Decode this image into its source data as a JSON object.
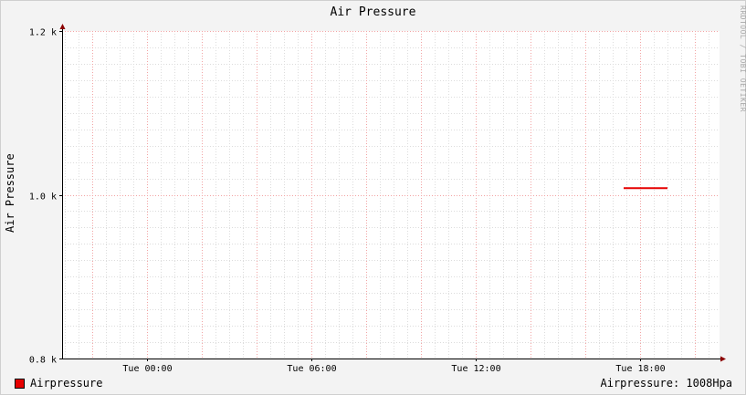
{
  "chart_data": {
    "type": "line",
    "title": "Air Pressure",
    "ylabel": "Air Pressure",
    "xlabel": "",
    "ylim": [
      800,
      1200
    ],
    "x_range_hours": [
      -3.1,
      20.9
    ],
    "y_ticks": [
      {
        "value": 800,
        "label": "0.8 k"
      },
      {
        "value": 1000,
        "label": "1.0 k"
      },
      {
        "value": 1200,
        "label": "1.2 k"
      }
    ],
    "x_ticks": [
      {
        "value": 0,
        "label": "Tue 00:00"
      },
      {
        "value": 6,
        "label": "Tue 06:00"
      },
      {
        "value": 12,
        "label": "Tue 12:00"
      },
      {
        "value": 18,
        "label": "Tue 18:00"
      }
    ],
    "grid": true,
    "series": [
      {
        "name": "Airpressure",
        "color": "#e60000",
        "x": [
          17.4,
          19.0
        ],
        "values": [
          1008,
          1008
        ]
      }
    ],
    "legend": {
      "label": "Airpressure",
      "placement": "bottom-left"
    },
    "readout": "Airpressure: 1008Hpa",
    "watermark": "RRDTOOL / TOBI OETIKER"
  }
}
